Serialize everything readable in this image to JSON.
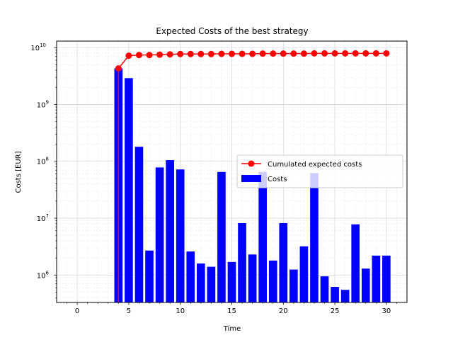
{
  "chart_data": {
    "type": "bar",
    "title": "Expected Costs of the best strategy",
    "xlabel": "Time",
    "ylabel": "Costs [EUR]",
    "y_scale": "log",
    "xlim": [
      -2,
      32
    ],
    "ylim": [
      330000,
      13000000000
    ],
    "x_ticks": [
      0,
      5,
      10,
      15,
      20,
      25,
      30
    ],
    "y_ticks": [
      {
        "value": 1000000,
        "label": "10",
        "exp": "6"
      },
      {
        "value": 10000000,
        "label": "10",
        "exp": "7"
      },
      {
        "value": 100000000,
        "label": "10",
        "exp": "8"
      },
      {
        "value": 1000000000,
        "label": "10",
        "exp": "9"
      },
      {
        "value": 10000000000,
        "label": "10",
        "exp": "10"
      }
    ],
    "grid": true,
    "legend_placement": "center-right",
    "colors": {
      "bars": "#0000ff",
      "line": "#ff0000"
    },
    "series": [
      {
        "name": "Costs",
        "kind": "bar",
        "x": [
          4,
          5,
          6,
          7,
          8,
          9,
          10,
          11,
          12,
          13,
          14,
          15,
          16,
          17,
          18,
          19,
          20,
          21,
          22,
          23,
          24,
          25,
          26,
          27,
          28,
          29,
          30
        ],
        "values": [
          4300000000,
          2900000000,
          180000000,
          2700000,
          78000000,
          105000000,
          72000000,
          2600000,
          1600000,
          1400000,
          65000000,
          1700000,
          8200000,
          2300000,
          65000000,
          1800000,
          8200000,
          1250000,
          3200000,
          62000000,
          950000,
          620000,
          550000,
          7800000,
          1300000,
          2200000,
          2200000
        ]
      },
      {
        "name": "Cumulated expected costs",
        "kind": "line",
        "x": [
          4,
          5,
          6,
          7,
          8,
          9,
          10,
          11,
          12,
          13,
          14,
          15,
          16,
          17,
          18,
          19,
          20,
          21,
          22,
          23,
          24,
          25,
          26,
          27,
          28,
          29,
          30
        ],
        "values": [
          4300000000,
          7200000000,
          7400000000,
          7400000000,
          7500000000,
          7600000000,
          7700000000,
          7700000000,
          7700000000,
          7700000000,
          7750000000,
          7750000000,
          7760000000,
          7760000000,
          7830000000,
          7830000000,
          7840000000,
          7840000000,
          7840000000,
          7900000000,
          7900000000,
          7900000000,
          7900000000,
          7910000000,
          7910000000,
          7910000000,
          7910000000
        ]
      }
    ]
  }
}
